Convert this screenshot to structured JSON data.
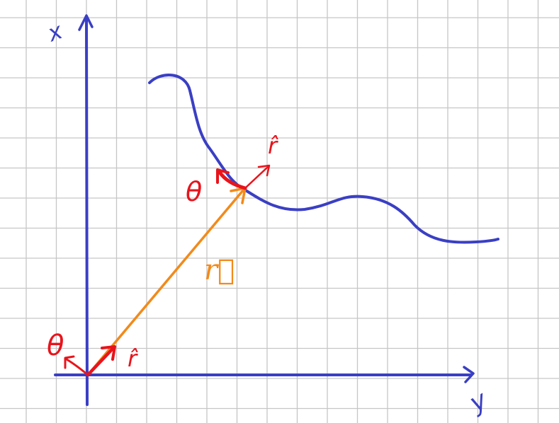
{
  "labels": {
    "x_axis": "x",
    "y_axis": "y",
    "theta_origin": "θ",
    "r_hat_origin": "r̂",
    "theta_point": "θ",
    "r_hat_point": "r̂",
    "r_vector": "r⃗"
  },
  "colors": {
    "paper": "#ffffff",
    "grid": "#c6c6c6",
    "axes_and_curve": "#3a3fc4",
    "unit_vectors": "#e8141c",
    "position_vector": "#f28a1a"
  },
  "icons": {
    "position_vector": "arrow",
    "unit_vector_r": "arrow",
    "unit_vector_theta": "arrow"
  }
}
